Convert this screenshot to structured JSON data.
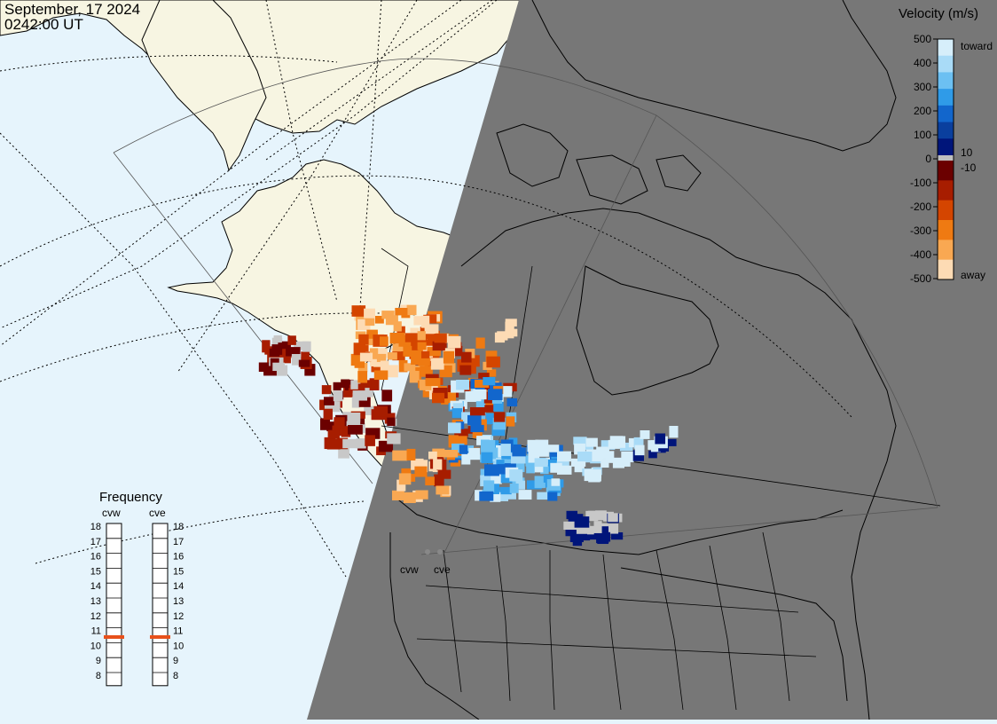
{
  "header": {
    "date": "September, 17 2024",
    "time": "0242:00 UT"
  },
  "map": {
    "night_color": "#777777",
    "ocean_color": "#e6f4fc",
    "land_color": "#f7f5e2",
    "no_data_color": "#c8c8c8",
    "station_labels": [
      "cvw",
      "cve"
    ]
  },
  "velocity_legend": {
    "title": "Velocity (m/s)",
    "ticks": [
      "500",
      "400",
      "300",
      "200",
      "100",
      "0",
      "-100",
      "-200",
      "-300",
      "-400",
      "-500"
    ],
    "side_labels": {
      "toward": "toward",
      "away": "away",
      "pos_min": "10",
      "neg_min": "-10"
    },
    "colors": [
      "#d6eefa",
      "#a9dbf7",
      "#6cc0f2",
      "#2f9be8",
      "#1266cc",
      "#0a3f9e",
      "#00157a",
      "#6b0000",
      "#a71d00",
      "#d44500",
      "#ef7a12",
      "#f9a852",
      "#fddbb4"
    ]
  },
  "frequency_panel": {
    "title": "Frequency",
    "stations": [
      {
        "name": "cvw",
        "frequency_mhz": 10.8
      },
      {
        "name": "cve",
        "frequency_mhz": 10.8
      }
    ],
    "scale_labels": [
      "18",
      "17",
      "16",
      "15",
      "14",
      "13",
      "12",
      "11",
      "10",
      "9",
      "8"
    ],
    "indicator_color": "#e8501a"
  }
}
